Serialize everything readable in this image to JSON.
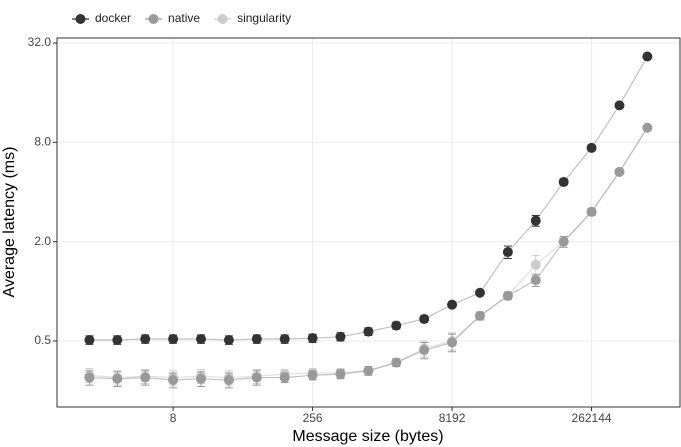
{
  "chart_data": {
    "type": "line",
    "x_label": "Message size (bytes)",
    "y_label": "Average latency (ms)",
    "x": [
      1,
      2,
      4,
      8,
      16,
      32,
      64,
      128,
      256,
      512,
      1024,
      2048,
      4096,
      8192,
      16384,
      32768,
      65536,
      131072,
      262144,
      524288,
      1048576
    ],
    "series": [
      {
        "name": "docker",
        "color": "#333333",
        "values": [
          0.507,
          0.507,
          0.514,
          0.514,
          0.514,
          0.507,
          0.514,
          0.514,
          0.52,
          0.53,
          0.57,
          0.62,
          0.68,
          0.83,
          0.98,
          1.73,
          2.68,
          4.6,
          7.4,
          13.4,
          26.5
        ],
        "errors": [
          0.03,
          0.03,
          0.03,
          0.03,
          0.03,
          0.03,
          0.03,
          0.03,
          0.03,
          0.03,
          0.03,
          0.03,
          0.03,
          0.03,
          0.03,
          0.15,
          0.2,
          0.2,
          0.3,
          0.4,
          0.6
        ]
      },
      {
        "name": "native",
        "color": "#999999",
        "values": [
          0.3,
          0.295,
          0.3,
          0.29,
          0.295,
          0.29,
          0.3,
          0.3,
          0.31,
          0.315,
          0.33,
          0.37,
          0.44,
          0.49,
          0.71,
          0.94,
          1.17,
          2.0,
          3.03,
          5.3,
          9.8
        ],
        "errors": [
          0.03,
          0.03,
          0.03,
          0.03,
          0.03,
          0.03,
          0.03,
          0.02,
          0.02,
          0.02,
          0.02,
          0.02,
          0.05,
          0.06,
          0.04,
          0.05,
          0.1,
          0.15,
          0.15,
          0.2,
          0.3
        ]
      },
      {
        "name": "singularity",
        "color": "#cccccc",
        "values": [
          0.31,
          0.3,
          0.306,
          0.3,
          0.306,
          0.3,
          0.306,
          0.315,
          0.32,
          0.32,
          0.33,
          0.37,
          0.45,
          0.5,
          0.71,
          0.94,
          1.45,
          2.0,
          3.03,
          5.3,
          9.8
        ],
        "errors": [
          0.03,
          0.03,
          0.03,
          0.03,
          0.03,
          0.03,
          0.03,
          0.02,
          0.02,
          0.02,
          0.02,
          0.02,
          0.05,
          0.06,
          0.04,
          0.05,
          0.2,
          0.15,
          0.15,
          0.2,
          0.3
        ]
      }
    ],
    "xlim": [
      0.447,
      2360000
    ],
    "ylim": [
      0.199,
      34.3
    ],
    "xticks": [
      8,
      256,
      8192,
      262144
    ],
    "yticks": [
      {
        "value": 0.5,
        "label": "0.5"
      },
      {
        "value": 2,
        "label": "2.0"
      },
      {
        "value": 8,
        "label": "8.0"
      },
      {
        "value": 32,
        "label": "32.0"
      }
    ],
    "x_log": true,
    "y_log": true,
    "grid": true,
    "legend": "top-left"
  }
}
